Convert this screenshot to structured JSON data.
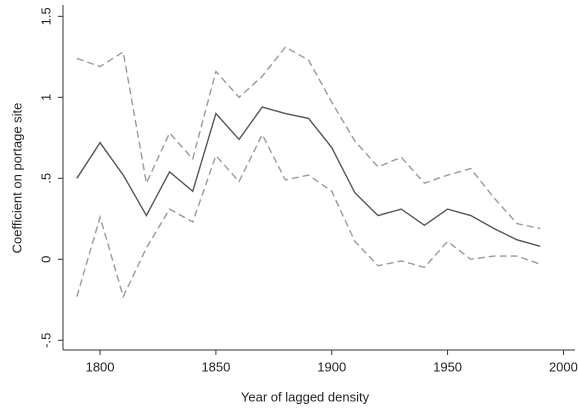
{
  "chart_data": {
    "type": "line",
    "x_label": "Year of lagged density",
    "y_label": "Coefficient on portage site",
    "x": [
      1790,
      1800,
      1810,
      1820,
      1830,
      1840,
      1850,
      1860,
      1870,
      1880,
      1890,
      1900,
      1910,
      1920,
      1930,
      1940,
      1950,
      1960,
      1970,
      1980,
      1990
    ],
    "series": [
      {
        "color": "#555555",
        "style": "solid",
        "values": [
          0.5,
          0.72,
          0.52,
          0.27,
          0.54,
          0.42,
          0.9,
          0.74,
          0.94,
          0.9,
          0.87,
          0.69,
          0.41,
          0.27,
          0.31,
          0.21,
          0.31,
          0.27,
          0.19,
          0.12,
          0.08
        ]
      },
      {
        "color": "#9a9a9a",
        "style": "dashed",
        "values": [
          1.24,
          1.19,
          1.28,
          0.47,
          0.78,
          0.62,
          1.16,
          1.0,
          1.13,
          1.31,
          1.23,
          0.97,
          0.73,
          0.57,
          0.63,
          0.47,
          0.52,
          0.56,
          0.38,
          0.22,
          0.19
        ]
      },
      {
        "color": "#9a9a9a",
        "style": "dashed",
        "values": [
          -0.23,
          0.26,
          -0.23,
          0.07,
          0.31,
          0.23,
          0.64,
          0.48,
          0.77,
          0.49,
          0.52,
          0.42,
          0.11,
          -0.04,
          -0.01,
          -0.05,
          0.11,
          0.0,
          0.02,
          0.02,
          -0.03
        ]
      }
    ],
    "xlim": [
      1784,
      2005
    ],
    "xticks": [
      1800,
      1850,
      1900,
      1950,
      2000
    ],
    "ylim": [
      -0.56,
      1.57
    ],
    "yticks": [
      {
        "value": -0.5,
        "label": "-.5"
      },
      0,
      {
        "value": 0.5,
        "label": ".5"
      },
      1,
      1.5
    ],
    "grid": false
  }
}
